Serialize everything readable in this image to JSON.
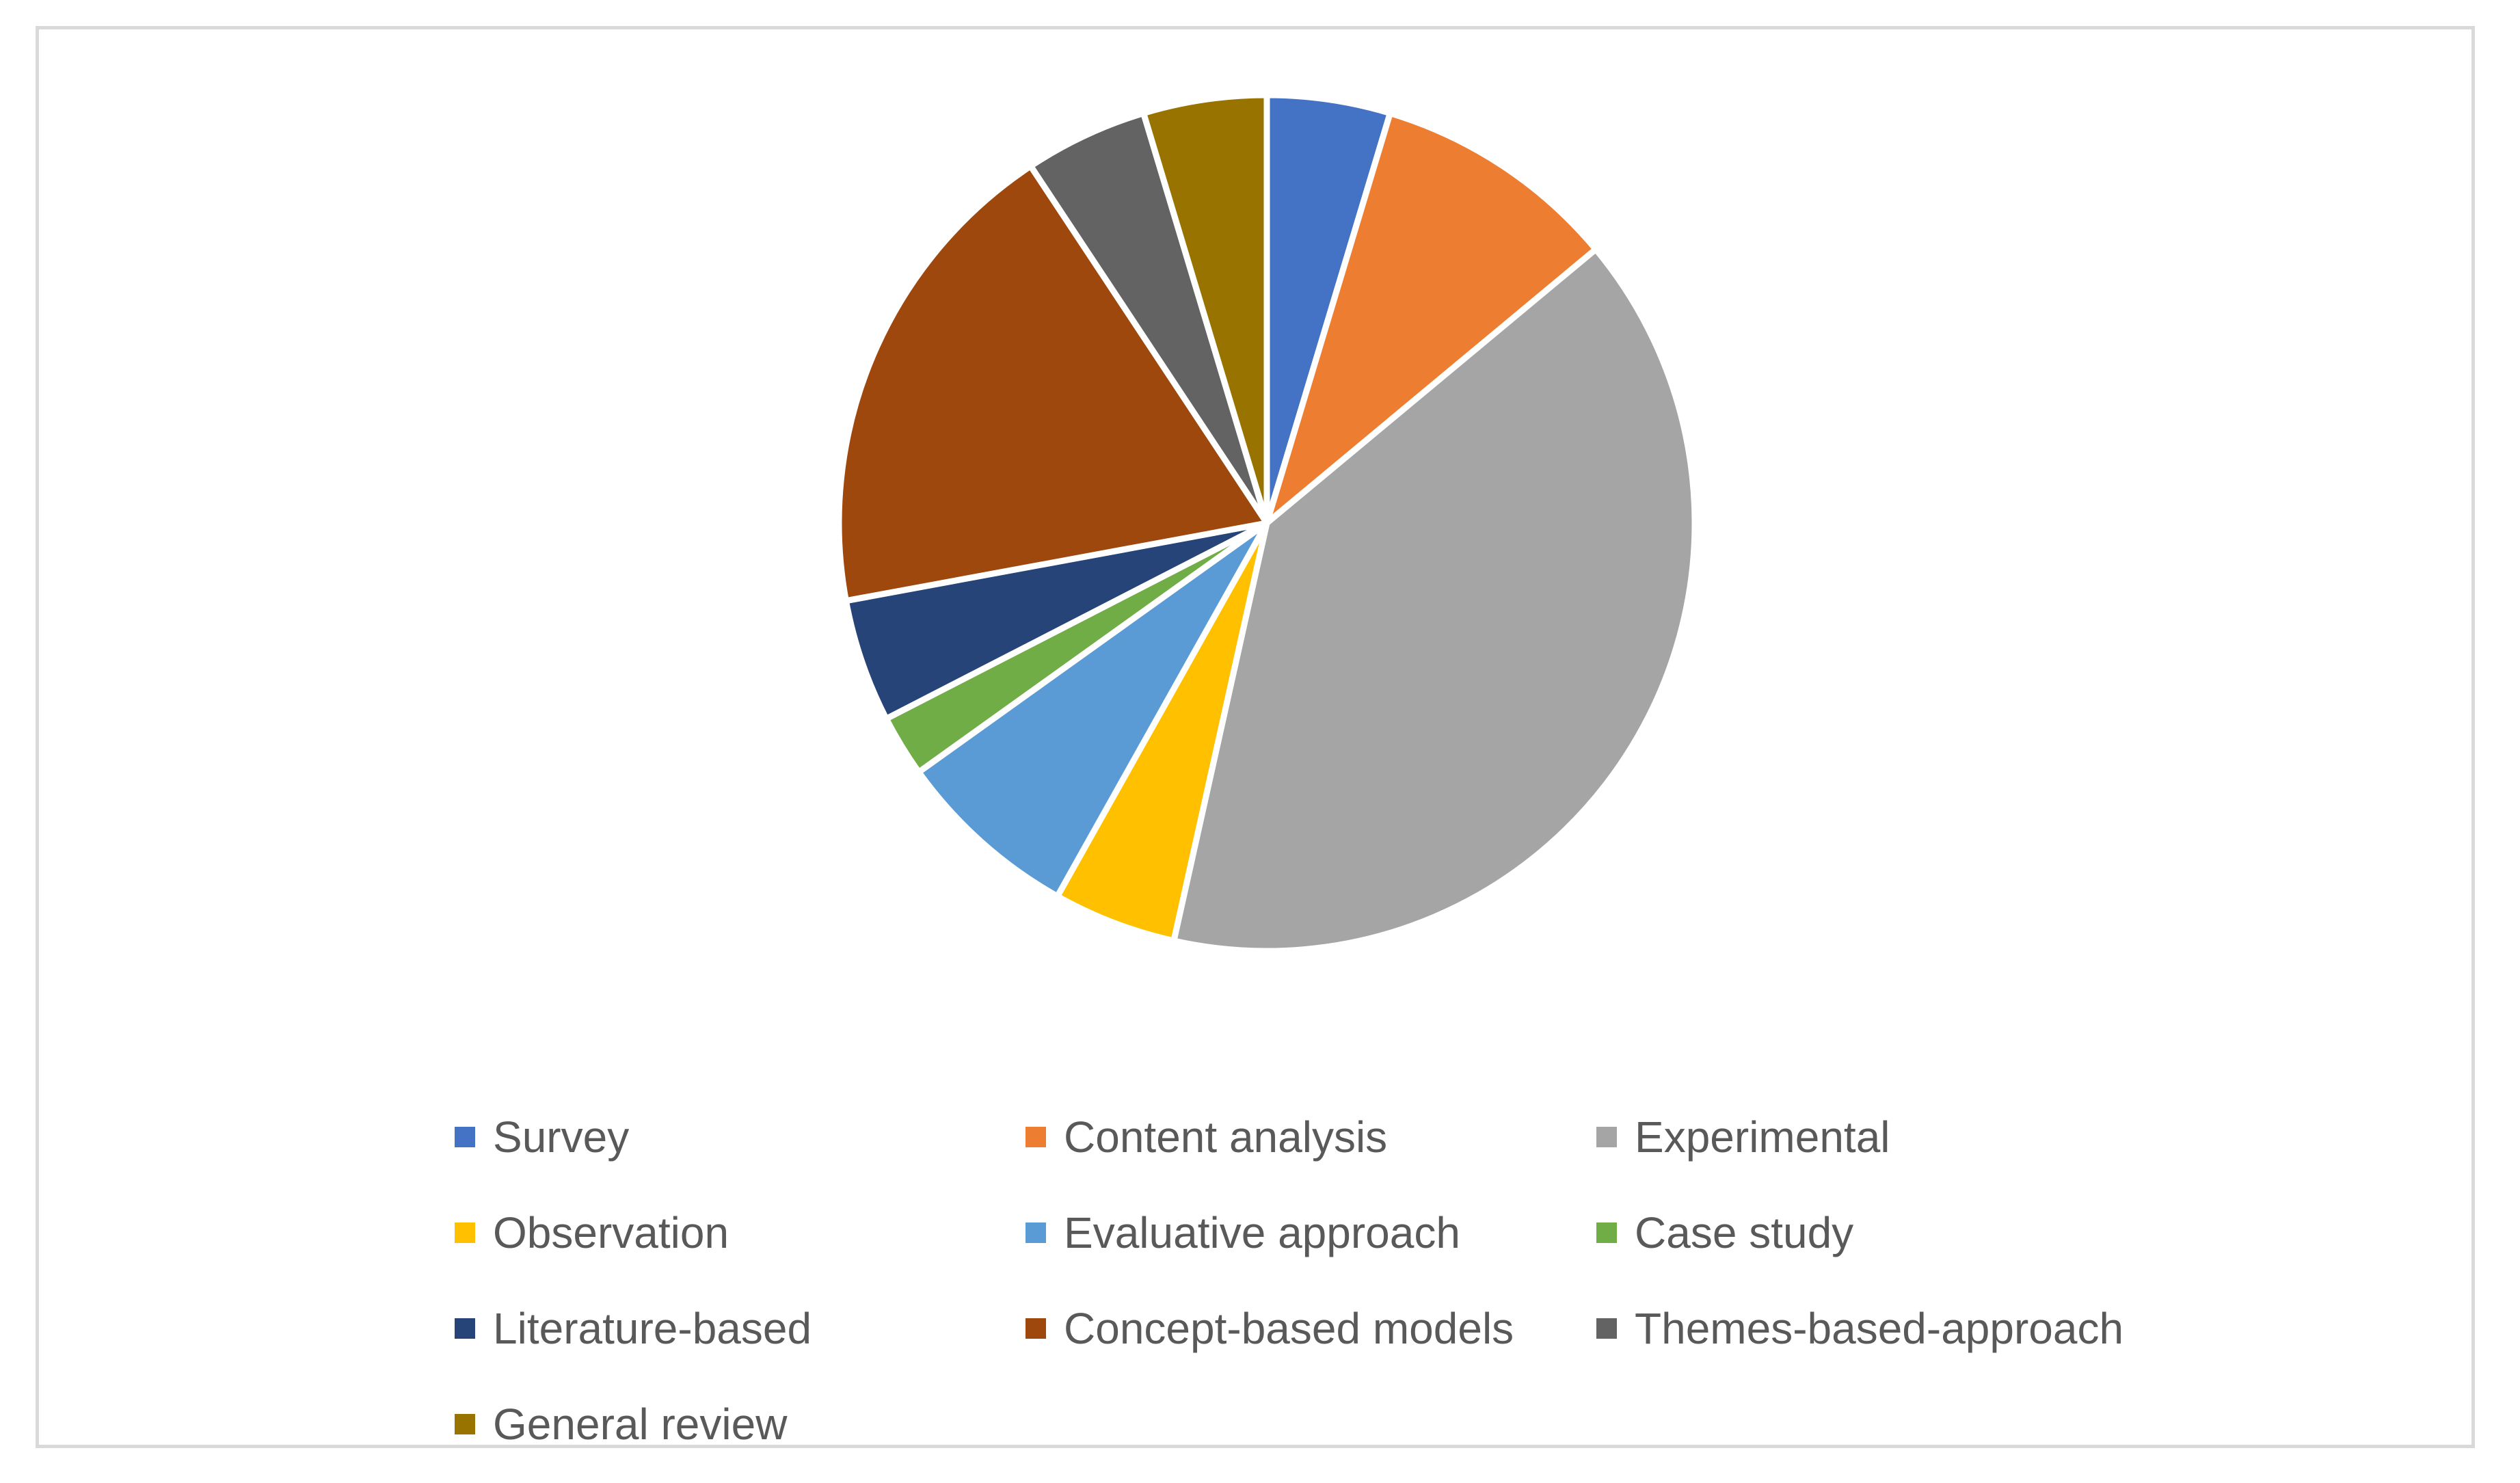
{
  "chart_data": {
    "type": "pie",
    "title": "",
    "legend_position": "bottom",
    "categories": [
      "Survey",
      "Content analysis",
      "Experimental",
      "Observation",
      "Evaluative approach",
      "Case study",
      "Literature-based",
      "Concept-based models",
      "Themes-based-approach",
      "General review"
    ],
    "values": [
      2,
      4,
      17,
      2,
      3,
      1,
      2,
      8,
      2,
      2
    ],
    "colors": [
      "#4472C4",
      "#ED7D31",
      "#A5A5A5",
      "#FFC000",
      "#5B9BD5",
      "#70AD47",
      "#264478",
      "#9E480E",
      "#636363",
      "#997300"
    ]
  }
}
